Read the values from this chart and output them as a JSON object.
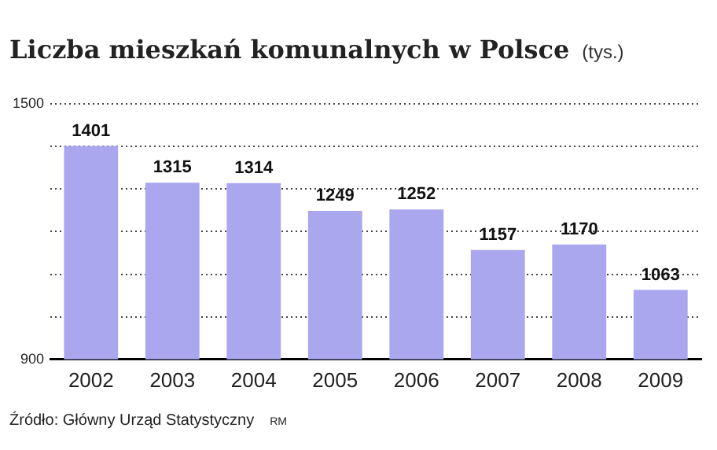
{
  "chart_data": {
    "type": "bar",
    "title": "Liczba mieszkań komunalnych w Polsce",
    "subtitle": "(tys.)",
    "categories": [
      "2002",
      "2003",
      "2004",
      "2005",
      "2006",
      "2007",
      "2008",
      "2009"
    ],
    "values": [
      1401,
      1315,
      1314,
      1249,
      1252,
      1157,
      1170,
      1063
    ],
    "color": "#aaa7ef",
    "ylim": [
      900,
      1500
    ],
    "yticks": [
      900,
      {
        "value": 1000,
        "label": null
      },
      {
        "value": 1100,
        "label": null
      },
      {
        "value": 1200,
        "label": null
      },
      {
        "value": 1300,
        "label": null
      },
      {
        "value": 1400,
        "label": null
      },
      1500
    ],
    "grid": "y",
    "data_labels": true,
    "annotations": [
      "Źródło: Główny Urząd Statystyczny",
      "RM"
    ]
  }
}
